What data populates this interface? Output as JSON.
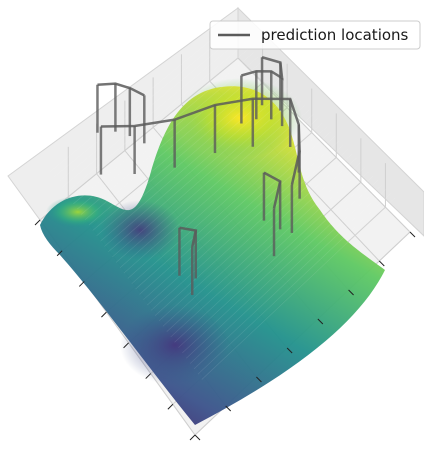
{
  "chart_data": {
    "type": "surface-3d",
    "title": "",
    "xlabel": "",
    "ylabel": "",
    "zlabel": "",
    "grid": true,
    "colormap": "viridis",
    "legend": {
      "placement": "top-right",
      "entries": [
        {
          "label": "prediction locations",
          "color": "#5b5b5b",
          "marker": "line"
        }
      ]
    },
    "axis_ranges": {
      "x": [
        0,
        1
      ],
      "y": [
        0,
        1
      ],
      "z": [
        0,
        1
      ]
    },
    "surface_peaks": [
      {
        "x": 0.55,
        "y": 0.72,
        "z": 0.95
      },
      {
        "x": 0.12,
        "y": 0.28,
        "z": 0.72
      },
      {
        "x": 0.55,
        "y": 0.45,
        "z": 0.55
      }
    ],
    "prediction_paths": [
      {
        "name": "",
        "points": [
          [
            0.16,
            0.18,
            0.65
          ],
          [
            0.22,
            0.3,
            0.6
          ],
          [
            0.28,
            0.45,
            0.55
          ],
          [
            0.34,
            0.6,
            0.55
          ],
          [
            0.42,
            0.72,
            0.55
          ],
          [
            0.52,
            0.82,
            0.55
          ],
          [
            0.62,
            0.78,
            0.55
          ],
          [
            0.7,
            0.72,
            0.55
          ],
          [
            0.78,
            0.62,
            0.55
          ]
        ]
      },
      {
        "name": "",
        "points": [
          [
            0.5,
            0.6,
            0.95
          ],
          [
            0.54,
            0.64,
            0.98
          ],
          [
            0.58,
            0.68,
            0.98
          ],
          [
            0.62,
            0.7,
            0.96
          ],
          [
            0.56,
            0.74,
            0.94
          ],
          [
            0.5,
            0.7,
            0.95
          ]
        ]
      },
      {
        "name": "",
        "points": [
          [
            0.05,
            0.25,
            0.7
          ],
          [
            0.1,
            0.3,
            0.72
          ],
          [
            0.14,
            0.34,
            0.7
          ],
          [
            0.18,
            0.38,
            0.66
          ]
        ]
      },
      {
        "name": "",
        "points": [
          [
            0.7,
            0.55,
            0.62
          ],
          [
            0.76,
            0.58,
            0.6
          ],
          [
            0.8,
            0.52,
            0.55
          ]
        ]
      },
      {
        "name": "",
        "points": [
          [
            0.5,
            0.3,
            0.3
          ],
          [
            0.55,
            0.34,
            0.3
          ],
          [
            0.58,
            0.3,
            0.28
          ]
        ]
      }
    ]
  }
}
